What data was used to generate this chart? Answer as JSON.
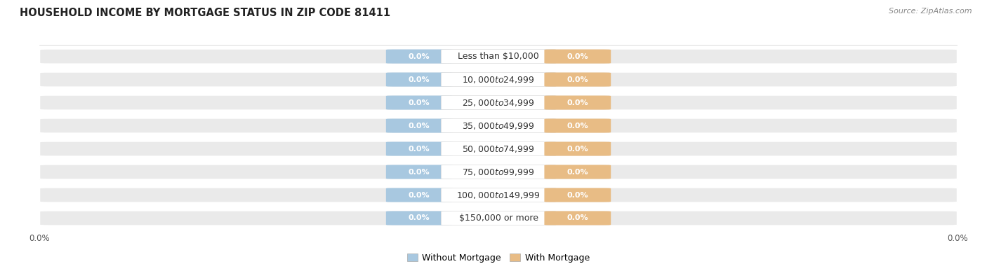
{
  "title": "HOUSEHOLD INCOME BY MORTGAGE STATUS IN ZIP CODE 81411",
  "source": "Source: ZipAtlas.com",
  "categories": [
    "Less than $10,000",
    "$10,000 to $24,999",
    "$25,000 to $34,999",
    "$35,000 to $49,999",
    "$50,000 to $74,999",
    "$75,000 to $99,999",
    "$100,000 to $149,999",
    "$150,000 or more"
  ],
  "without_mortgage": [
    0.0,
    0.0,
    0.0,
    0.0,
    0.0,
    0.0,
    0.0,
    0.0
  ],
  "with_mortgage": [
    0.0,
    0.0,
    0.0,
    0.0,
    0.0,
    0.0,
    0.0,
    0.0
  ],
  "color_without": "#A8C8E0",
  "color_with": "#E8BC85",
  "color_label_bg": "#FFFFFF",
  "row_bg_color": "#EAEAEA",
  "row_separator_color": "#FFFFFF",
  "legend_without": "Without Mortgage",
  "legend_with": "With Mortgage",
  "title_fontsize": 10.5,
  "label_fontsize": 9,
  "value_fontsize": 8,
  "tick_fontsize": 8.5,
  "source_fontsize": 8,
  "xlim": [
    -1.0,
    1.0
  ]
}
